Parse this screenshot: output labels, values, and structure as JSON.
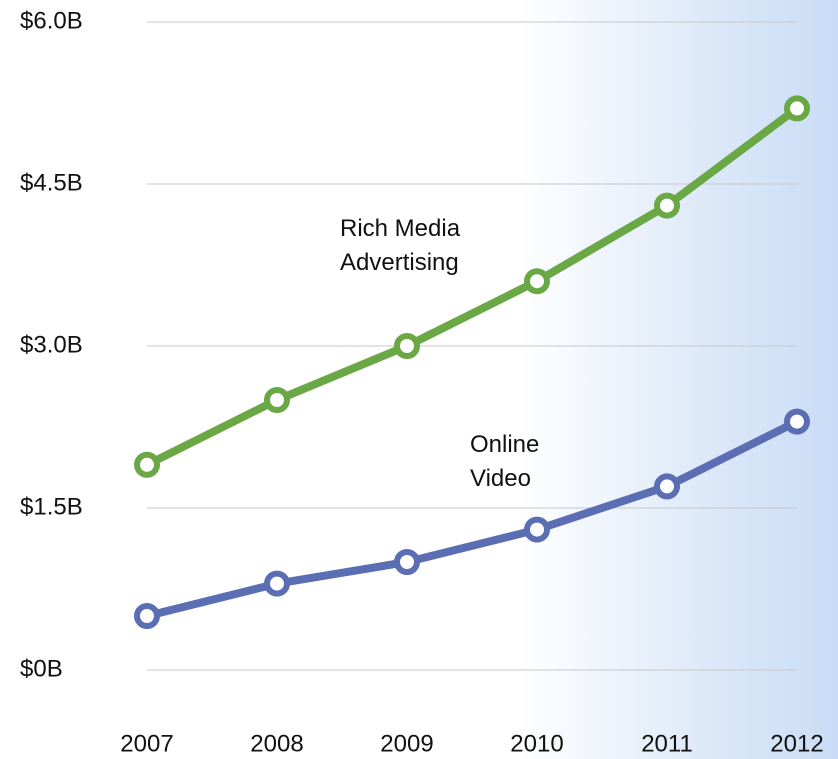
{
  "chart_data": {
    "type": "line",
    "categories": [
      "2007",
      "2008",
      "2009",
      "2010",
      "2011",
      "2012"
    ],
    "series": [
      {
        "name": "Rich Media Advertising",
        "color": "#6aa846",
        "values": [
          1.9,
          2.5,
          3.0,
          3.6,
          4.3,
          5.2
        ]
      },
      {
        "name": "Online Video",
        "color": "#5b6db3",
        "values": [
          0.5,
          0.8,
          1.0,
          1.3,
          1.7,
          2.3
        ]
      }
    ],
    "ylim": [
      0,
      6
    ],
    "yticks": [
      {
        "value": 0,
        "label": "$0B"
      },
      {
        "value": 1.5,
        "label": "$1.5B"
      },
      {
        "value": 3,
        "label": "$3.0B"
      },
      {
        "value": 4.5,
        "label": "$4.5B"
      },
      {
        "value": 6,
        "label": "$6.0B"
      }
    ],
    "grid": true
  }
}
